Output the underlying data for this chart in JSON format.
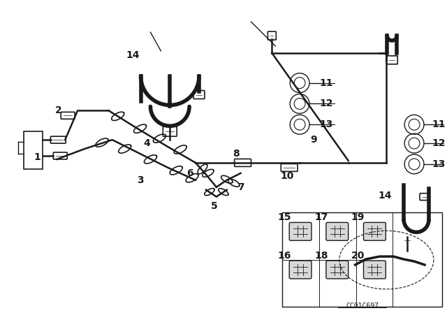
{
  "bg_color": "#ffffff",
  "line_color": "#1a1a1a",
  "fig_width": 6.4,
  "fig_height": 4.48,
  "part_number": "CC01C697"
}
